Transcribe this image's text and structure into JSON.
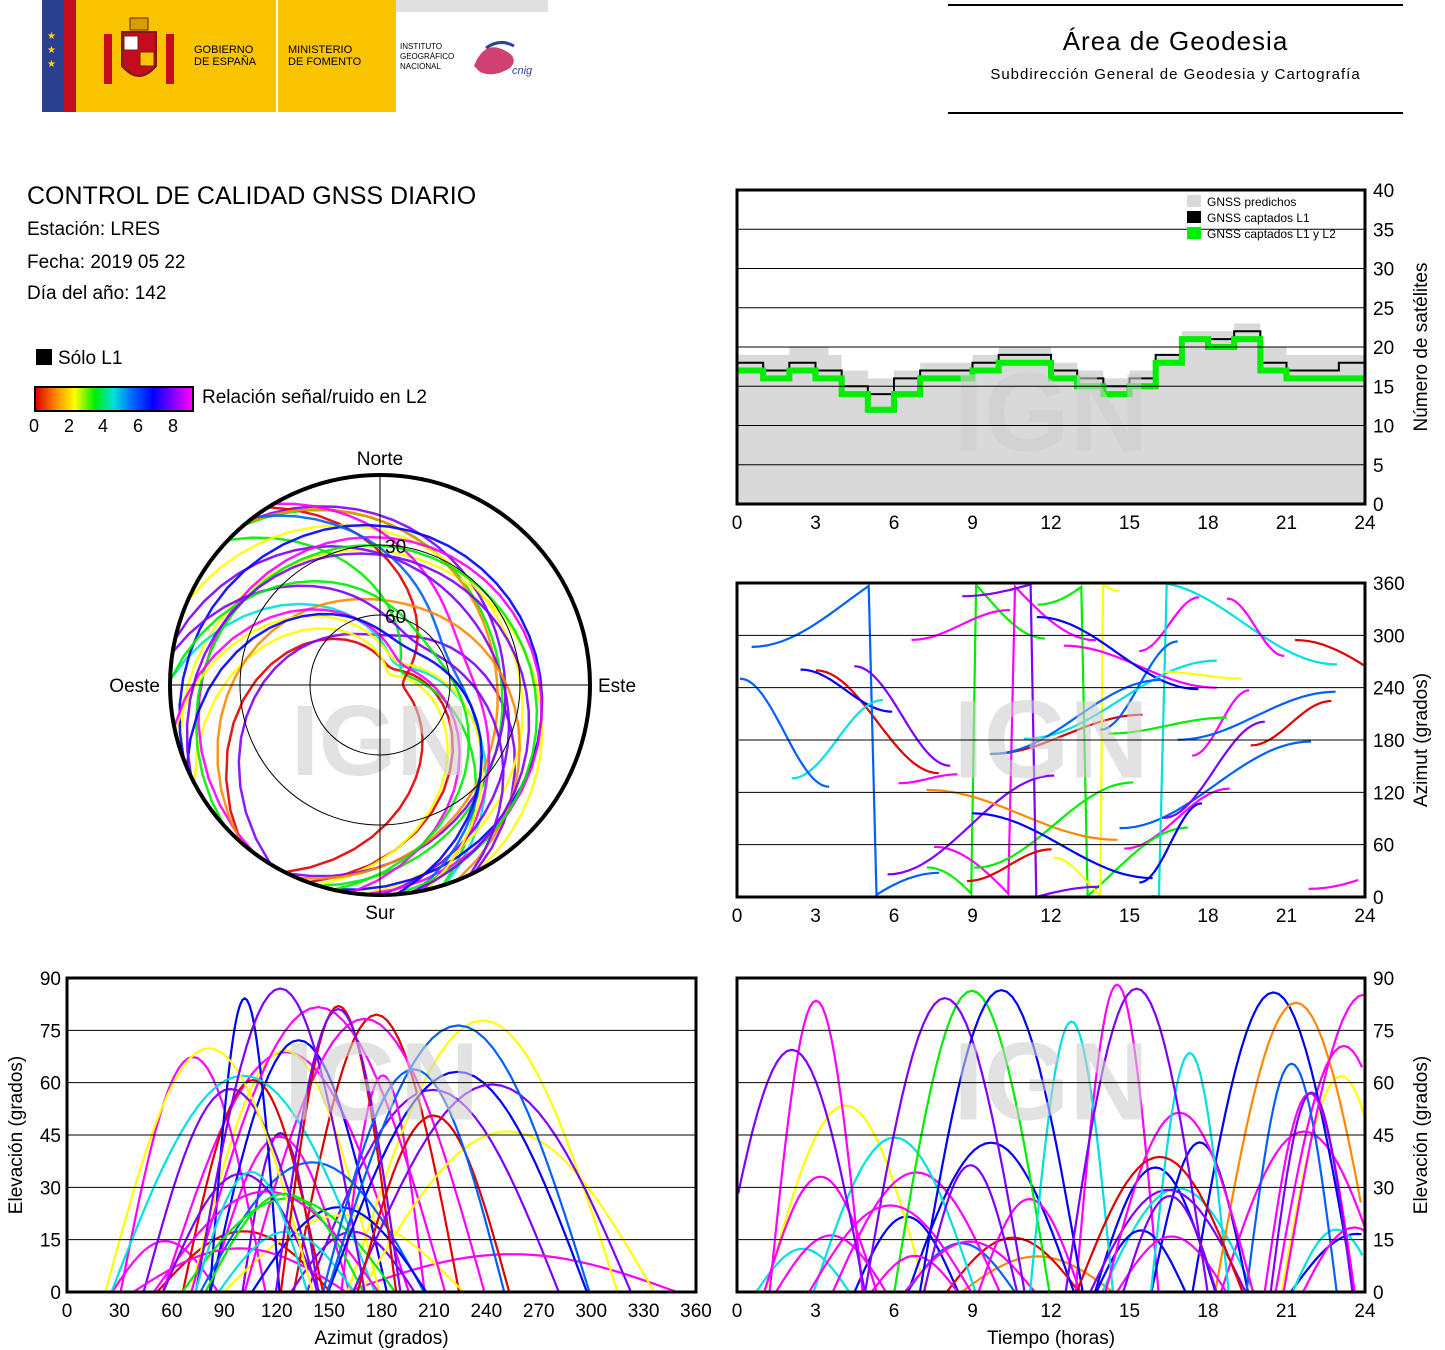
{
  "header": {
    "gov_line1": "GOBIERNO",
    "gov_line2": "DE ESPAÑA",
    "min_line1": "MINISTERIO",
    "min_line2": "DE FOMENTO",
    "ign_line1": "INSTITUTO",
    "ign_line2": "GEOGRÁFICO",
    "ign_line3": "NACIONAL",
    "cnig": "cnig",
    "area_title": "Área de Geodesia",
    "area_subtitle": "Subdirección General de Geodesia y Cartografía"
  },
  "report": {
    "title": "CONTROL DE CALIDAD GNSS DIARIO",
    "station": "Estación: LRES",
    "date": "Fecha: 2019 05 22",
    "doy": "Día del año: 142",
    "legend_l1": "Sólo L1",
    "colorbar_label": "Relación señal/ruido en L2",
    "colorbar_ticks": [
      "0",
      "2",
      "4",
      "6",
      "8"
    ]
  },
  "colors": {
    "predicted": "#d9d9d9",
    "l1": "#000000",
    "l1l2": "#00ee00",
    "snr_scale": [
      "#e00000",
      "#ff8800",
      "#ffff00",
      "#00ee00",
      "#00e0e0",
      "#0060ff",
      "#0000ff",
      "#8000ff",
      "#ff00ff"
    ]
  },
  "watermark": "IGN",
  "chart_data": [
    {
      "id": "satellites",
      "type": "area",
      "ylabel": "Número de satélites",
      "xlim": [
        0,
        24
      ],
      "ylim": [
        0,
        40
      ],
      "xticks": [
        "0",
        "3",
        "6",
        "9",
        "12",
        "15",
        "18",
        "21",
        "24"
      ],
      "yticks": [
        "0",
        "5",
        "10",
        "15",
        "20",
        "25",
        "30",
        "35",
        "40"
      ],
      "grid": true,
      "legend_position": "top-right",
      "legend": [
        "GNSS predichos",
        "GNSS captados L1",
        "GNSS captados L1 y L2"
      ],
      "x": [
        0,
        1,
        2,
        3,
        3.5,
        4,
        5,
        6,
        7,
        8,
        9,
        10,
        11,
        12,
        13,
        14,
        15,
        16,
        17,
        18,
        19,
        20,
        21,
        22,
        23,
        24
      ],
      "series": [
        {
          "name": "GNSS predichos",
          "values": [
            19,
            19,
            20,
            20,
            19,
            17,
            16,
            17,
            18,
            18,
            19,
            20,
            20,
            18,
            17,
            16,
            17,
            19,
            22,
            22,
            23,
            20,
            19,
            19,
            19,
            19
          ]
        },
        {
          "name": "GNSS captados L1",
          "values": [
            18,
            17,
            18,
            17,
            17,
            15,
            14,
            16,
            17,
            17,
            18,
            19,
            19,
            17,
            16,
            15,
            16,
            19,
            21,
            21,
            22,
            18,
            17,
            17,
            18,
            17
          ]
        },
        {
          "name": "GNSS captados L1 y L2",
          "values": [
            17,
            16,
            17,
            16,
            16,
            14,
            12,
            14,
            16,
            16,
            17,
            18,
            18,
            16,
            15,
            14,
            15,
            18,
            21,
            20,
            21,
            17,
            16,
            16,
            16,
            16
          ]
        }
      ]
    },
    {
      "id": "skyplot",
      "type": "scatter",
      "labels": {
        "north": "Norte",
        "south": "Sur",
        "east": "Este",
        "west": "Oeste"
      },
      "rings": [
        "30",
        "60"
      ]
    },
    {
      "id": "azimuth-time",
      "type": "scatter",
      "ylabel": "Azimut (grados)",
      "xlim": [
        0,
        24
      ],
      "ylim": [
        0,
        360
      ],
      "xticks": [
        "0",
        "3",
        "6",
        "9",
        "12",
        "15",
        "18",
        "21",
        "24"
      ],
      "yticks": [
        "0",
        "60",
        "120",
        "180",
        "240",
        "300",
        "360"
      ]
    },
    {
      "id": "elevation-azimuth",
      "type": "scatter",
      "xlabel": "Azimut (grados)",
      "ylabel": "Elevación (grados)",
      "xlim": [
        0,
        360
      ],
      "ylim": [
        0,
        90
      ],
      "xticks": [
        "0",
        "30",
        "60",
        "90",
        "120",
        "150",
        "180",
        "210",
        "240",
        "270",
        "300",
        "330",
        "360"
      ],
      "yticks": [
        "0",
        "15",
        "30",
        "45",
        "60",
        "75",
        "90"
      ]
    },
    {
      "id": "elevation-time",
      "type": "scatter",
      "xlabel": "Tiempo (horas)",
      "ylabel": "Elevación (grados)",
      "xlim": [
        0,
        24
      ],
      "ylim": [
        0,
        90
      ],
      "xticks": [
        "0",
        "3",
        "6",
        "9",
        "12",
        "15",
        "18",
        "21",
        "24"
      ],
      "yticks": [
        "0",
        "15",
        "30",
        "45",
        "60",
        "75",
        "90"
      ]
    }
  ]
}
